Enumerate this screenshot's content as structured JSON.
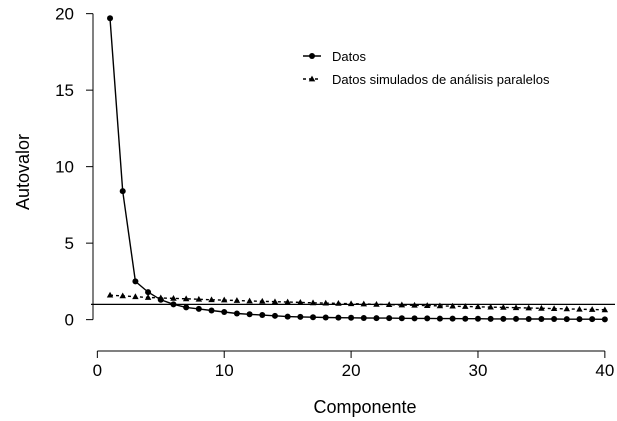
{
  "chart_data": {
    "type": "line",
    "xlabel": "Componente",
    "ylabel": "Autovalor",
    "xlim": [
      -0.5,
      40.8
    ],
    "ylim": [
      -1.2,
      20.5
    ],
    "xticks": [
      0,
      10,
      20,
      30,
      40
    ],
    "yticks": [
      0,
      5,
      10,
      15,
      20
    ],
    "grid": false,
    "legend_position": "top-right",
    "reference_line": {
      "y": 1.0
    },
    "series": [
      {
        "name": "Datos",
        "marker": "circle",
        "line_style": "solid",
        "x": [
          1,
          2,
          3,
          4,
          5,
          6,
          7,
          8,
          9,
          10,
          11,
          12,
          13,
          14,
          15,
          16,
          17,
          18,
          19,
          20,
          21,
          22,
          23,
          24,
          25,
          26,
          27,
          28,
          29,
          30,
          31,
          32,
          33,
          34,
          35,
          36,
          37,
          38,
          39,
          40
        ],
        "values": [
          19.7,
          8.4,
          2.5,
          1.8,
          1.3,
          1.0,
          0.8,
          0.7,
          0.6,
          0.5,
          0.4,
          0.35,
          0.3,
          0.25,
          0.2,
          0.18,
          0.16,
          0.14,
          0.13,
          0.12,
          0.11,
          0.1,
          0.1,
          0.09,
          0.08,
          0.08,
          0.07,
          0.07,
          0.06,
          0.06,
          0.05,
          0.05,
          0.05,
          0.04,
          0.04,
          0.04,
          0.03,
          0.03,
          0.03,
          0.02
        ]
      },
      {
        "name": "Datos simulados de análisis paralelos",
        "marker": "triangle",
        "line_style": "dashed",
        "x": [
          1,
          2,
          3,
          4,
          5,
          6,
          7,
          8,
          9,
          10,
          11,
          12,
          13,
          14,
          15,
          16,
          17,
          18,
          19,
          20,
          21,
          22,
          23,
          24,
          25,
          26,
          27,
          28,
          29,
          30,
          31,
          32,
          33,
          34,
          35,
          36,
          37,
          38,
          39,
          40
        ],
        "values": [
          1.6,
          1.55,
          1.5,
          1.45,
          1.42,
          1.39,
          1.36,
          1.33,
          1.3,
          1.28,
          1.25,
          1.22,
          1.2,
          1.17,
          1.15,
          1.13,
          1.1,
          1.08,
          1.06,
          1.04,
          1.02,
          1.0,
          0.98,
          0.96,
          0.94,
          0.92,
          0.9,
          0.88,
          0.86,
          0.84,
          0.82,
          0.8,
          0.78,
          0.76,
          0.74,
          0.72,
          0.7,
          0.68,
          0.66,
          0.64
        ]
      }
    ]
  }
}
